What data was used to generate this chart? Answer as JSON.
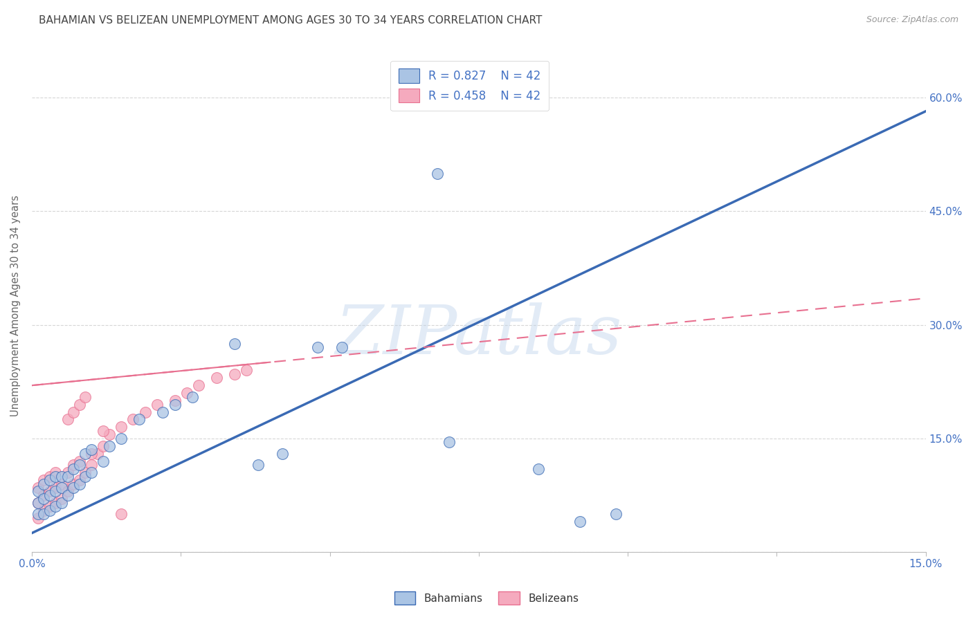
{
  "title": "BAHAMIAN VS BELIZEAN UNEMPLOYMENT AMONG AGES 30 TO 34 YEARS CORRELATION CHART",
  "source": "Source: ZipAtlas.com",
  "ylabel": "Unemployment Among Ages 30 to 34 years",
  "xlim": [
    0.0,
    0.15
  ],
  "ylim": [
    0.0,
    0.65
  ],
  "bahamian_color": "#aac4e4",
  "belizean_color": "#f5aabe",
  "bahamian_line_color": "#3a6ab4",
  "belizean_line_color": "#e87090",
  "R_bahamian": 0.827,
  "R_belizean": 0.458,
  "N": 42,
  "legend_label_bahamians": "Bahamians",
  "legend_label_belizeans": "Belizeans",
  "watermark": "ZIPatlas",
  "watermark_color": "#c0d4ec",
  "background_color": "#ffffff",
  "grid_color": "#cccccc",
  "title_color": "#444444",
  "axis_color": "#4472c4",
  "bah_line_x0": 0.0,
  "bah_line_y0": 0.025,
  "bah_line_x1": 0.15,
  "bah_line_y1": 0.582,
  "bel_line_x0": 0.0,
  "bel_line_y0": 0.22,
  "bel_line_x1": 0.15,
  "bel_line_y1": 0.335,
  "bah_x": [
    0.001,
    0.001,
    0.001,
    0.002,
    0.002,
    0.002,
    0.003,
    0.003,
    0.003,
    0.004,
    0.004,
    0.004,
    0.005,
    0.005,
    0.005,
    0.006,
    0.006,
    0.007,
    0.007,
    0.008,
    0.008,
    0.009,
    0.009,
    0.01,
    0.01,
    0.012,
    0.013,
    0.015,
    0.018,
    0.022,
    0.024,
    0.027,
    0.038,
    0.042,
    0.048,
    0.068,
    0.092,
    0.098,
    0.034,
    0.052,
    0.07,
    0.085
  ],
  "bah_y": [
    0.05,
    0.065,
    0.08,
    0.05,
    0.07,
    0.09,
    0.055,
    0.075,
    0.095,
    0.06,
    0.08,
    0.1,
    0.065,
    0.085,
    0.1,
    0.075,
    0.1,
    0.085,
    0.11,
    0.09,
    0.115,
    0.1,
    0.13,
    0.105,
    0.135,
    0.12,
    0.14,
    0.15,
    0.175,
    0.185,
    0.195,
    0.205,
    0.115,
    0.13,
    0.27,
    0.5,
    0.04,
    0.05,
    0.275,
    0.27,
    0.145,
    0.11
  ],
  "bel_x": [
    0.001,
    0.001,
    0.001,
    0.002,
    0.002,
    0.002,
    0.003,
    0.003,
    0.003,
    0.004,
    0.004,
    0.004,
    0.005,
    0.005,
    0.006,
    0.006,
    0.007,
    0.007,
    0.008,
    0.008,
    0.009,
    0.01,
    0.011,
    0.012,
    0.013,
    0.015,
    0.017,
    0.019,
    0.021,
    0.024,
    0.026,
    0.028,
    0.031,
    0.034,
    0.036,
    0.006,
    0.007,
    0.008,
    0.009,
    0.01,
    0.012,
    0.015
  ],
  "bel_y": [
    0.045,
    0.065,
    0.085,
    0.055,
    0.075,
    0.095,
    0.06,
    0.08,
    0.1,
    0.065,
    0.085,
    0.105,
    0.07,
    0.09,
    0.08,
    0.105,
    0.09,
    0.115,
    0.095,
    0.12,
    0.105,
    0.115,
    0.13,
    0.14,
    0.155,
    0.165,
    0.175,
    0.185,
    0.195,
    0.2,
    0.21,
    0.22,
    0.23,
    0.235,
    0.24,
    0.175,
    0.185,
    0.195,
    0.205,
    0.13,
    0.16,
    0.05
  ]
}
